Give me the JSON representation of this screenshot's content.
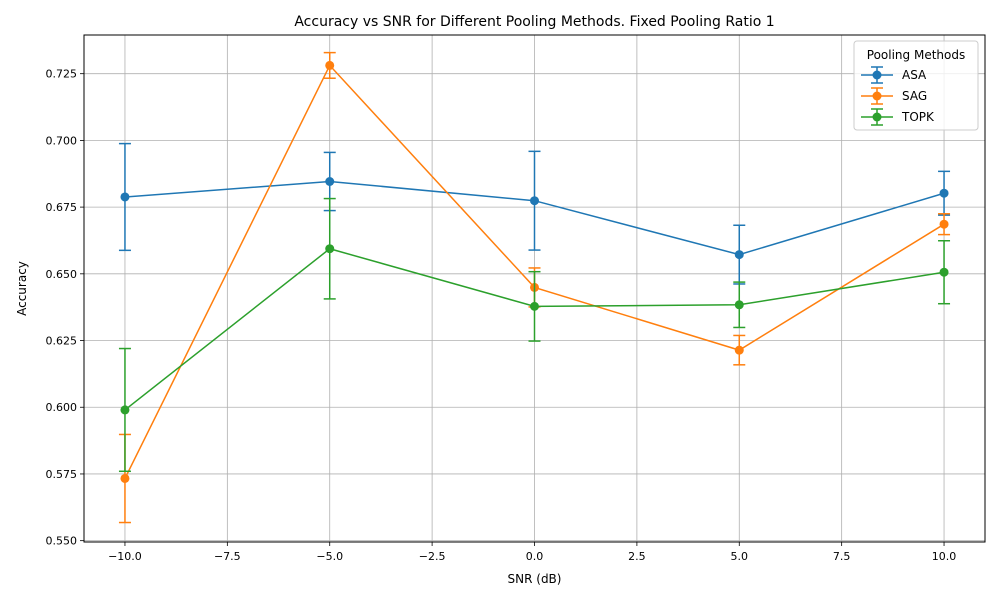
{
  "chart_data": {
    "type": "line",
    "title": "Accuracy vs SNR for Different Pooling Methods. Fixed Pooling Ratio 1",
    "xlabel": "SNR (dB)",
    "ylabel": "Accuracy",
    "x": [
      -10,
      -5,
      0,
      5,
      10
    ],
    "xlim": [
      -11.0,
      11.0
    ],
    "ylim": [
      0.5495,
      0.7395
    ],
    "xticks": [
      -10.0,
      -7.5,
      -5.0,
      -2.5,
      0.0,
      2.5,
      5.0,
      7.5,
      10.0
    ],
    "xtick_labels": [
      "−10.0",
      "−7.5",
      "−5.0",
      "−2.5",
      "0.0",
      "2.5",
      "5.0",
      "7.5",
      "10.0"
    ],
    "yticks": [
      0.55,
      0.575,
      0.6,
      0.625,
      0.65,
      0.675,
      0.7,
      0.725
    ],
    "ytick_labels": [
      "0.550",
      "0.575",
      "0.600",
      "0.625",
      "0.650",
      "0.675",
      "0.700",
      "0.725"
    ],
    "grid": true,
    "legend_title": "Pooling Methods",
    "legend_position": "top-right",
    "series": [
      {
        "name": "ASA",
        "color": "#1f77b4",
        "values": [
          0.6788,
          0.6846,
          0.6774,
          0.6572,
          0.6802
        ],
        "errors": [
          0.02,
          0.0109,
          0.0185,
          0.011,
          0.0082
        ]
      },
      {
        "name": "SAG",
        "color": "#ff7f0e",
        "values": [
          0.5733,
          0.7281,
          0.6449,
          0.6214,
          0.6686
        ],
        "errors": [
          0.0165,
          0.0048,
          0.0073,
          0.0055,
          0.0039
        ]
      },
      {
        "name": "TOPK",
        "color": "#2ca02c",
        "values": [
          0.599,
          0.6594,
          0.6378,
          0.6384,
          0.6506
        ],
        "errors": [
          0.023,
          0.0188,
          0.013,
          0.0085,
          0.0118
        ]
      }
    ]
  }
}
